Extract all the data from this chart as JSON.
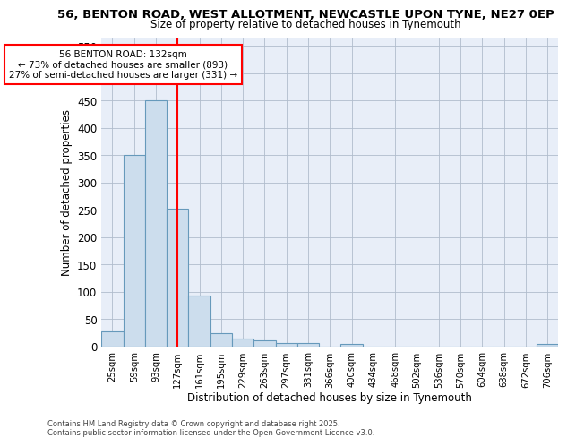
{
  "title_line1": "56, BENTON ROAD, WEST ALLOTMENT, NEWCASTLE UPON TYNE, NE27 0EP",
  "title_line2": "Size of property relative to detached houses in Tynemouth",
  "xlabel": "Distribution of detached houses by size in Tynemouth",
  "ylabel": "Number of detached properties",
  "bar_color": "#ccdded",
  "bar_edge_color": "#6699bb",
  "background_color": "#e8eef8",
  "grid_color": "#b0bccc",
  "annotation_text": "56 BENTON ROAD: 132sqm\n← 73% of detached houses are smaller (893)\n27% of semi-detached houses are larger (331) →",
  "vline_x": 3.0,
  "vline_color": "red",
  "annotation_box_color": "red",
  "categories": [
    "25sqm",
    "59sqm",
    "93sqm",
    "127sqm",
    "161sqm",
    "195sqm",
    "229sqm",
    "263sqm",
    "297sqm",
    "331sqm",
    "366sqm",
    "400sqm",
    "434sqm",
    "468sqm",
    "502sqm",
    "536sqm",
    "570sqm",
    "604sqm",
    "638sqm",
    "672sqm",
    "706sqm"
  ],
  "values": [
    28,
    350,
    450,
    253,
    93,
    25,
    14,
    11,
    6,
    6,
    0,
    5,
    0,
    0,
    0,
    0,
    0,
    0,
    0,
    0,
    5
  ],
  "ylim": [
    0,
    565
  ],
  "yticks": [
    0,
    50,
    100,
    150,
    200,
    250,
    300,
    350,
    400,
    450,
    500,
    550
  ],
  "footnote": "Contains HM Land Registry data © Crown copyright and database right 2025.\nContains public sector information licensed under the Open Government Licence v3.0."
}
